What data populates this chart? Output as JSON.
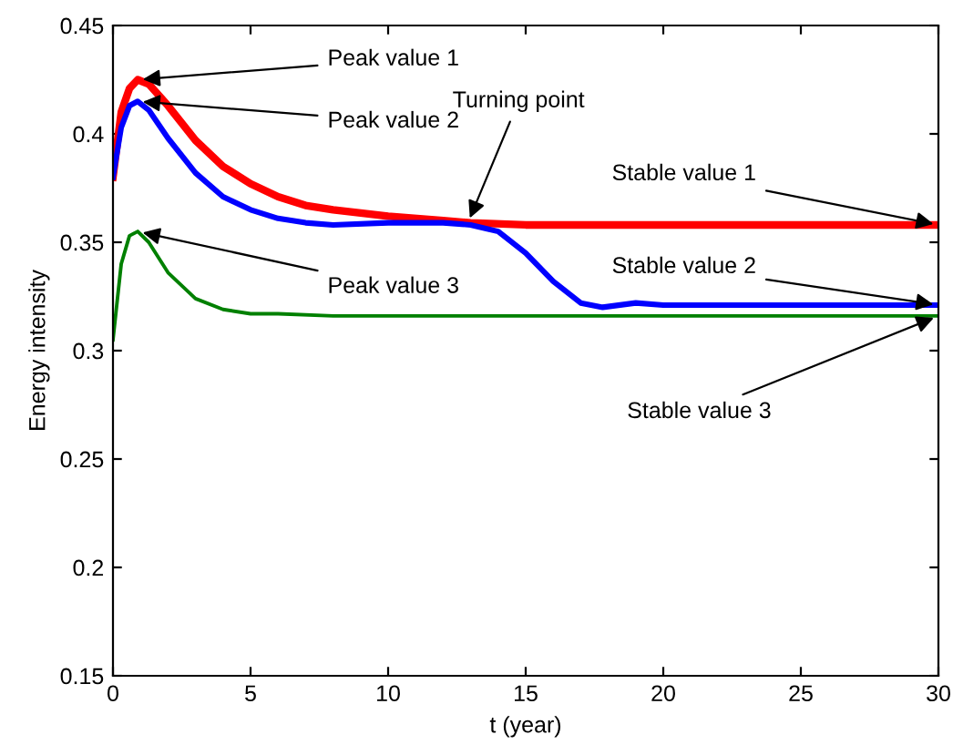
{
  "chart_data": {
    "type": "line",
    "xlabel": "t (year)",
    "ylabel": "Energy intensity",
    "xlim": [
      0,
      30
    ],
    "ylim": [
      0.15,
      0.45
    ],
    "xticks": [
      0,
      5,
      10,
      15,
      20,
      25,
      30
    ],
    "yticks": [
      0.15,
      0.2,
      0.25,
      0.3,
      0.35,
      0.4,
      0.45
    ],
    "grid": false,
    "legend": false,
    "series": [
      {
        "color": "#ff0000",
        "x": [
          0,
          0.3,
          0.6,
          0.9,
          1.3,
          2,
          3,
          4,
          5,
          6,
          7,
          8,
          10,
          12,
          13,
          15,
          20,
          25,
          30
        ],
        "values": [
          0.38,
          0.41,
          0.421,
          0.425,
          0.423,
          0.413,
          0.397,
          0.385,
          0.377,
          0.371,
          0.367,
          0.365,
          0.362,
          0.36,
          0.359,
          0.358,
          0.358,
          0.358,
          0.358
        ]
      },
      {
        "color": "#0000ff",
        "x": [
          0,
          0.3,
          0.6,
          0.9,
          1.3,
          2,
          3,
          4,
          5,
          6,
          7,
          8,
          10,
          12,
          13,
          14,
          15,
          16,
          17,
          17.8,
          19,
          20,
          25,
          30
        ],
        "values": [
          0.38,
          0.403,
          0.413,
          0.415,
          0.411,
          0.398,
          0.382,
          0.371,
          0.365,
          0.361,
          0.359,
          0.358,
          0.359,
          0.359,
          0.358,
          0.355,
          0.345,
          0.332,
          0.322,
          0.32,
          0.322,
          0.321,
          0.321,
          0.321
        ]
      },
      {
        "color": "#008000",
        "x": [
          0,
          0.3,
          0.6,
          0.9,
          1.3,
          2,
          3,
          4,
          5,
          6,
          8,
          10,
          15,
          20,
          25,
          30
        ],
        "values": [
          0.305,
          0.34,
          0.353,
          0.355,
          0.35,
          0.336,
          0.324,
          0.319,
          0.317,
          0.317,
          0.316,
          0.316,
          0.316,
          0.316,
          0.316,
          0.316
        ]
      }
    ],
    "annotations": [
      {
        "text": "Peak value 1",
        "x": 0.9,
        "y": 0.425
      },
      {
        "text": "Peak value 2",
        "x": 0.9,
        "y": 0.415
      },
      {
        "text": "Peak value 3",
        "x": 0.9,
        "y": 0.355
      },
      {
        "text": "Turning point",
        "x": 12.9,
        "y": 0.359
      },
      {
        "text": "Stable value 1",
        "x": 30,
        "y": 0.358
      },
      {
        "text": "Stable value 2",
        "x": 30,
        "y": 0.321
      },
      {
        "text": "Stable value 3",
        "x": 30,
        "y": 0.316
      }
    ]
  }
}
